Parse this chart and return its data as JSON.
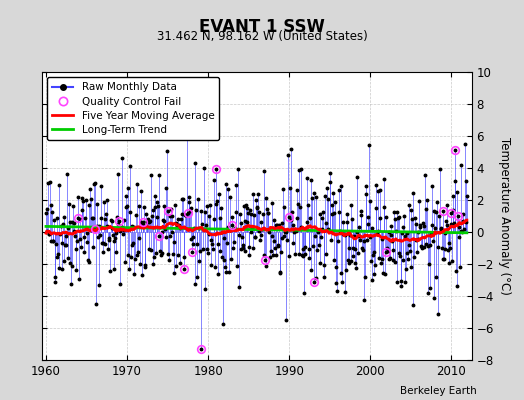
{
  "title": "EVANT 1 SSW",
  "subtitle": "31.462 N, 98.162 W (United States)",
  "ylabel": "Temperature Anomaly (°C)",
  "credit": "Berkeley Earth",
  "ylim": [
    -8,
    10
  ],
  "xlim": [
    1959.5,
    2012.5
  ],
  "xticks": [
    1960,
    1970,
    1980,
    1990,
    2000,
    2010
  ],
  "yticks": [
    -8,
    -6,
    -4,
    -2,
    0,
    2,
    4,
    6,
    8,
    10
  ],
  "bg_color": "#d8d8d8",
  "plot_bg_color": "#ffffff",
  "raw_line_color": "#4444ff",
  "raw_dot_color": "#000000",
  "qc_fail_color": "#ff44ff",
  "moving_avg_color": "#ff0000",
  "trend_color": "#00cc00",
  "seed": 42,
  "n_years": 52,
  "start_year": 1960,
  "raw_amplitude": 1.8
}
